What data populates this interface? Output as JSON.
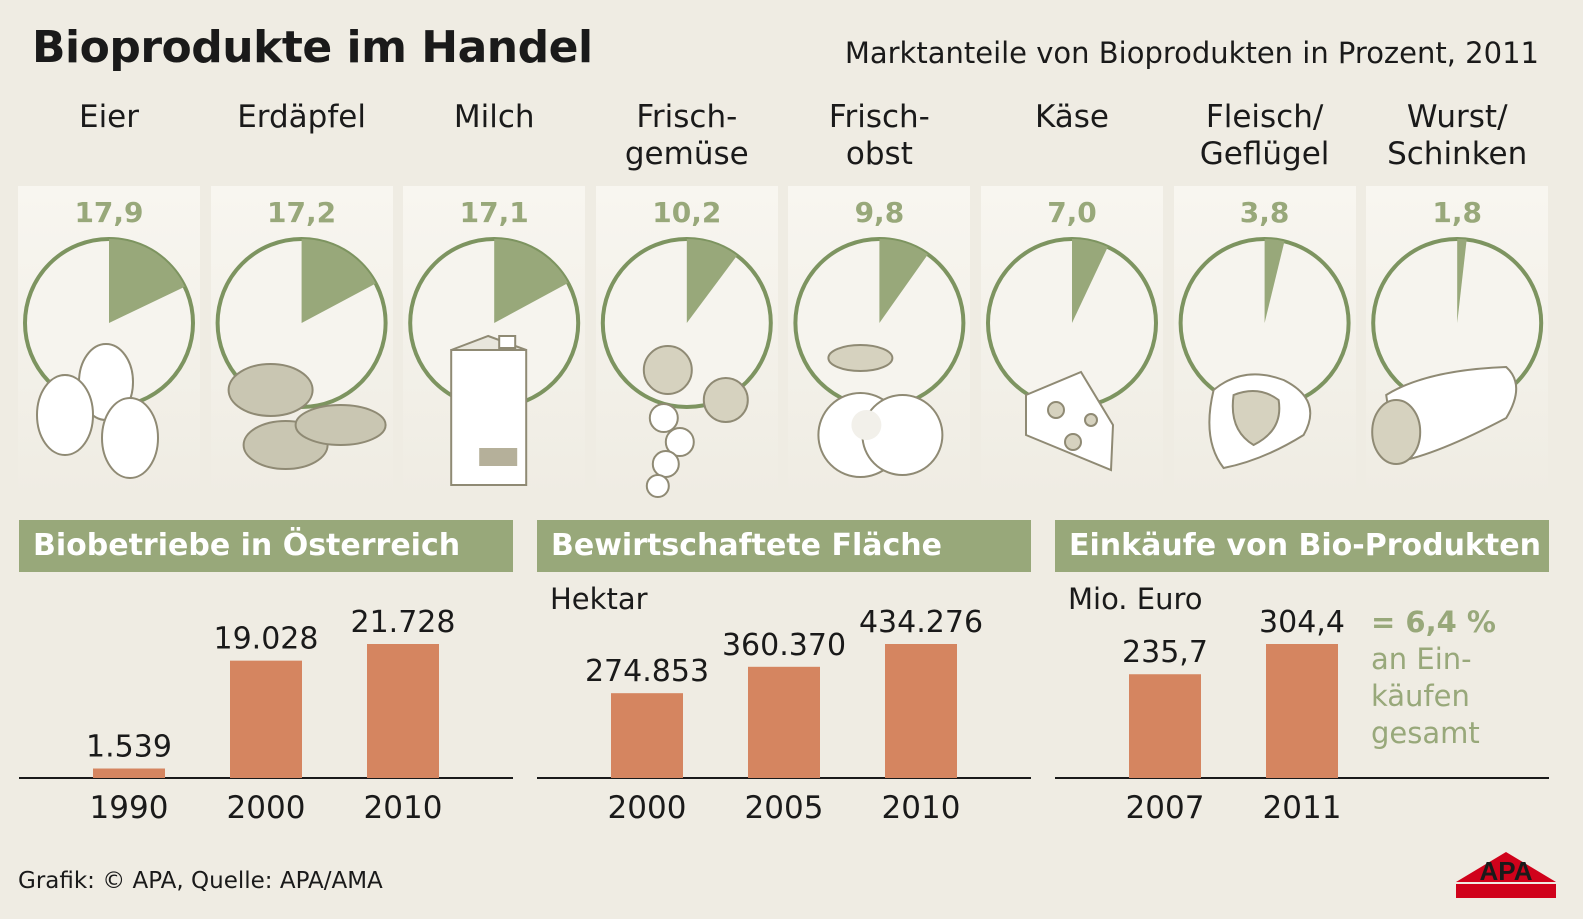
{
  "header": {
    "title": "Bioprodukte im Handel",
    "subtitle": "Marktanteile von Bioprodukten in Prozent, 2011"
  },
  "chart_data": [
    {
      "type": "pie",
      "title": "Marktanteile von Bioprodukten in Prozent, 2011",
      "categories": [
        {
          "label_lines": [
            "Eier"
          ],
          "value": 17.9,
          "value_label": "17,9",
          "icon": "eggs-icon"
        },
        {
          "label_lines": [
            "Erdäpfel"
          ],
          "value": 17.2,
          "value_label": "17,2",
          "icon": "potatoes-icon"
        },
        {
          "label_lines": [
            "Milch"
          ],
          "value": 17.1,
          "value_label": "17,1",
          "icon": "milk-carton-icon"
        },
        {
          "label_lines": [
            "Frisch-",
            "gemüse"
          ],
          "value": 10.2,
          "value_label": "10,2",
          "icon": "vegetables-icon"
        },
        {
          "label_lines": [
            "Frisch-",
            "obst"
          ],
          "value": 9.8,
          "value_label": "9,8",
          "icon": "apple-icon"
        },
        {
          "label_lines": [
            "Käse"
          ],
          "value": 7.0,
          "value_label": "7,0",
          "icon": "cheese-icon"
        },
        {
          "label_lines": [
            "Fleisch/",
            "Geflügel"
          ],
          "value": 3.8,
          "value_label": "3,8",
          "icon": "meat-icon"
        },
        {
          "label_lines": [
            "Wurst/",
            "Schinken"
          ],
          "value": 1.8,
          "value_label": "1,8",
          "icon": "sausage-icon"
        }
      ],
      "colors": {
        "slice": "#98a87a",
        "ring": "#7d9460"
      }
    },
    {
      "type": "bar",
      "title": "Biobetriebe in Österreich",
      "unit": "",
      "categories": [
        "1990",
        "2000",
        "2010"
      ],
      "values": [
        1539,
        19028,
        21728
      ],
      "value_labels": [
        "1.539",
        "19.028",
        "21.728"
      ]
    },
    {
      "type": "bar",
      "title": "Bewirtschaftete Fläche",
      "unit": "Hektar",
      "categories": [
        "2000",
        "2005",
        "2010"
      ],
      "values": [
        274853,
        360370,
        434276
      ],
      "value_labels": [
        "274.853",
        "360.370",
        "434.276"
      ]
    },
    {
      "type": "bar",
      "title": "Einkäufe von Bio-Produkten",
      "unit": "Mio. Euro",
      "categories": [
        "2007",
        "2011"
      ],
      "values": [
        235.7,
        304.4
      ],
      "value_labels": [
        "235,7",
        "304,4"
      ],
      "annotation": {
        "value": "= 6,4 %",
        "lines": [
          "an Ein-",
          "käufen",
          "gesamt"
        ]
      }
    }
  ],
  "colors": {
    "bar": "#d58560",
    "accent": "#98a87a",
    "background": "#efece3"
  },
  "footer": {
    "source": "Grafik: © APA, Quelle: APA/AMA",
    "logo_text": "APA"
  }
}
